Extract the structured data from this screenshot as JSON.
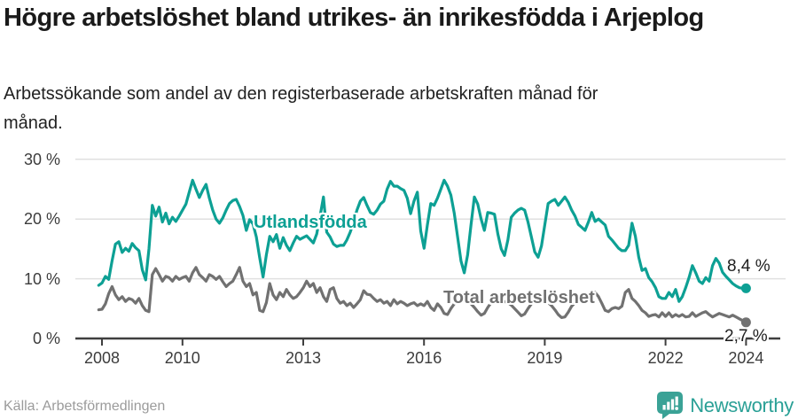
{
  "header": {
    "title": "Högre arbetslöshet bland utrikes- än inrikesfödda i Arjeplog",
    "subtitle": "Arbetssökande som andel av den registerbaserade arbetskraften månad för månad."
  },
  "chart_data": {
    "type": "line",
    "x_start_year": 2007.9167,
    "x_step_years": 0.08333,
    "x_ticks": [
      2008,
      2010,
      2013,
      2016,
      2019,
      2022,
      2024
    ],
    "x_tick_labels": [
      "2008",
      "2010",
      "2013",
      "2016",
      "2019",
      "2022",
      "2024"
    ],
    "y_ticks": [
      0,
      10,
      20,
      30
    ],
    "y_tick_labels": [
      "0 %",
      "10 %",
      "20 %",
      "30 %"
    ],
    "ylim": [
      0,
      31
    ],
    "grid": "horizontal",
    "legend_position": "inline-labels",
    "series": [
      {
        "name": "Utlandsfödda",
        "color": "#0da094",
        "end_label": "8,4 %",
        "values": [
          8.9,
          9.3,
          10.4,
          9.9,
          13.0,
          15.8,
          16.2,
          14.4,
          15.1,
          14.6,
          15.9,
          15.2,
          14.7,
          11.5,
          9.8,
          15.0,
          22.3,
          20.5,
          22.0,
          19.5,
          21.0,
          19.2,
          20.3,
          19.6,
          20.5,
          21.5,
          22.5,
          24.5,
          26.5,
          25.0,
          23.6,
          24.8,
          25.8,
          23.5,
          21.5,
          20.0,
          19.3,
          20.2,
          21.5,
          22.6,
          23.1,
          23.3,
          22.1,
          20.6,
          18.1,
          19.9,
          19.2,
          17.0,
          13.5,
          10.3,
          14.0,
          17.1,
          16.2,
          17.4,
          15.1,
          16.9,
          15.6,
          14.7,
          16.0,
          17.1,
          16.6,
          16.9,
          17.2,
          16.6,
          16.0,
          17.5,
          20.5,
          23.7,
          17.8,
          17.0,
          15.8,
          15.4,
          15.6,
          15.6,
          16.5,
          17.8,
          19.5,
          21.5,
          23.0,
          23.6,
          22.3,
          21.1,
          20.8,
          21.5,
          22.5,
          23.0,
          25.0,
          26.3,
          25.5,
          25.5,
          25.1,
          24.8,
          23.5,
          20.9,
          23.0,
          24.5,
          18.0,
          15.1,
          19.0,
          22.6,
          22.3,
          23.5,
          25.0,
          26.5,
          25.5,
          24.0,
          21.0,
          17.0,
          13.0,
          11.0,
          14.0,
          19.0,
          23.7,
          22.5,
          20.0,
          18.1,
          21.1,
          21.0,
          20.8,
          17.5,
          15.0,
          13.9,
          16.5,
          20.3,
          21.0,
          21.5,
          21.8,
          21.5,
          19.5,
          17.0,
          14.5,
          13.6,
          15.5,
          19.0,
          22.6,
          23.0,
          23.3,
          22.3,
          23.0,
          23.7,
          22.8,
          21.5,
          20.5,
          19.1,
          18.6,
          18.1,
          19.5,
          21.1,
          19.6,
          20.0,
          19.5,
          19.0,
          17.1,
          16.5,
          15.8,
          15.1,
          14.7,
          14.7,
          15.6,
          19.3,
          17.1,
          13.6,
          11.4,
          11.7,
          10.2,
          9.5,
          8.5,
          7.0,
          6.7,
          6.7,
          7.7,
          7.0,
          8.2,
          6.2,
          7.0,
          8.5,
          10.2,
          12.2,
          11.0,
          9.6,
          9.2,
          10.2,
          9.6,
          12.2,
          13.4,
          12.6,
          11.1,
          10.4,
          9.8,
          9.2,
          8.8,
          8.5,
          8.4,
          8.4
        ]
      },
      {
        "name": "Total arbetslöshet",
        "color": "#717171",
        "end_label": "2,7 %",
        "values": [
          4.8,
          4.9,
          5.8,
          7.5,
          8.7,
          7.3,
          6.5,
          7.0,
          6.2,
          6.7,
          6.5,
          5.9,
          6.7,
          5.5,
          4.7,
          4.5,
          10.7,
          11.7,
          10.7,
          9.6,
          10.4,
          10.2,
          9.6,
          10.4,
          9.9,
          10.2,
          10.4,
          9.6,
          11.0,
          11.9,
          10.7,
          10.2,
          9.6,
          10.7,
          10.4,
          9.9,
          10.4,
          9.5,
          8.7,
          9.2,
          9.6,
          10.7,
          11.9,
          9.6,
          8.7,
          9.2,
          7.3,
          7.7,
          4.7,
          4.5,
          6.0,
          9.2,
          7.3,
          6.5,
          7.7,
          7.0,
          8.2,
          7.3,
          6.7,
          7.0,
          7.7,
          8.5,
          9.6,
          8.7,
          9.2,
          7.7,
          8.5,
          7.0,
          6.2,
          8.2,
          8.5,
          6.7,
          5.9,
          6.2,
          5.5,
          5.9,
          5.2,
          5.8,
          6.5,
          8.0,
          7.4,
          7.3,
          6.7,
          6.2,
          6.5,
          5.9,
          6.2,
          5.5,
          6.5,
          5.8,
          6.2,
          5.9,
          5.5,
          5.8,
          6.0,
          5.5,
          5.8,
          5.5,
          6.2,
          5.2,
          4.7,
          5.8,
          5.2,
          4.2,
          4.0,
          5.0,
          5.8,
          6.0,
          6.2,
          6.5,
          6.2,
          5.8,
          5.2,
          4.5,
          3.9,
          4.2,
          5.2,
          6.0,
          6.3,
          6.2,
          6.0,
          6.2,
          6.0,
          5.6,
          5.0,
          4.4,
          3.8,
          4.1,
          5.0,
          5.8,
          6.2,
          6.0,
          6.2,
          6.3,
          6.0,
          5.5,
          4.8,
          4.0,
          3.5,
          3.6,
          4.4,
          5.4,
          6.0,
          6.2,
          6.3,
          6.5,
          6.2,
          7.3,
          7.7,
          7.0,
          5.9,
          4.7,
          4.5,
          5.0,
          5.2,
          5.0,
          5.4,
          7.7,
          8.2,
          6.7,
          6.2,
          5.5,
          4.7,
          4.3,
          3.7,
          3.9,
          4.0,
          3.6,
          4.3,
          3.7,
          4.3,
          3.6,
          4.0,
          3.7,
          4.0,
          3.6,
          3.7,
          4.3,
          3.7,
          4.0,
          4.3,
          4.5,
          4.0,
          3.6,
          3.9,
          4.2,
          4.0,
          3.8,
          3.6,
          3.9,
          3.6,
          3.3,
          3.0,
          2.7
        ]
      }
    ],
    "title": "Högre arbetslöshet bland utrikes- än inrikesfödda i Arjeplog",
    "xlabel": "",
    "ylabel": ""
  },
  "footer": {
    "source": "Källa: Arbetsförmedlingen",
    "brand": "Newsworthy"
  },
  "colors": {
    "accent": "#0da094",
    "series_gray": "#717171",
    "grid": "#e0e0e0",
    "axis": "#3f3f3f",
    "brand_teal": "#2aa096"
  }
}
